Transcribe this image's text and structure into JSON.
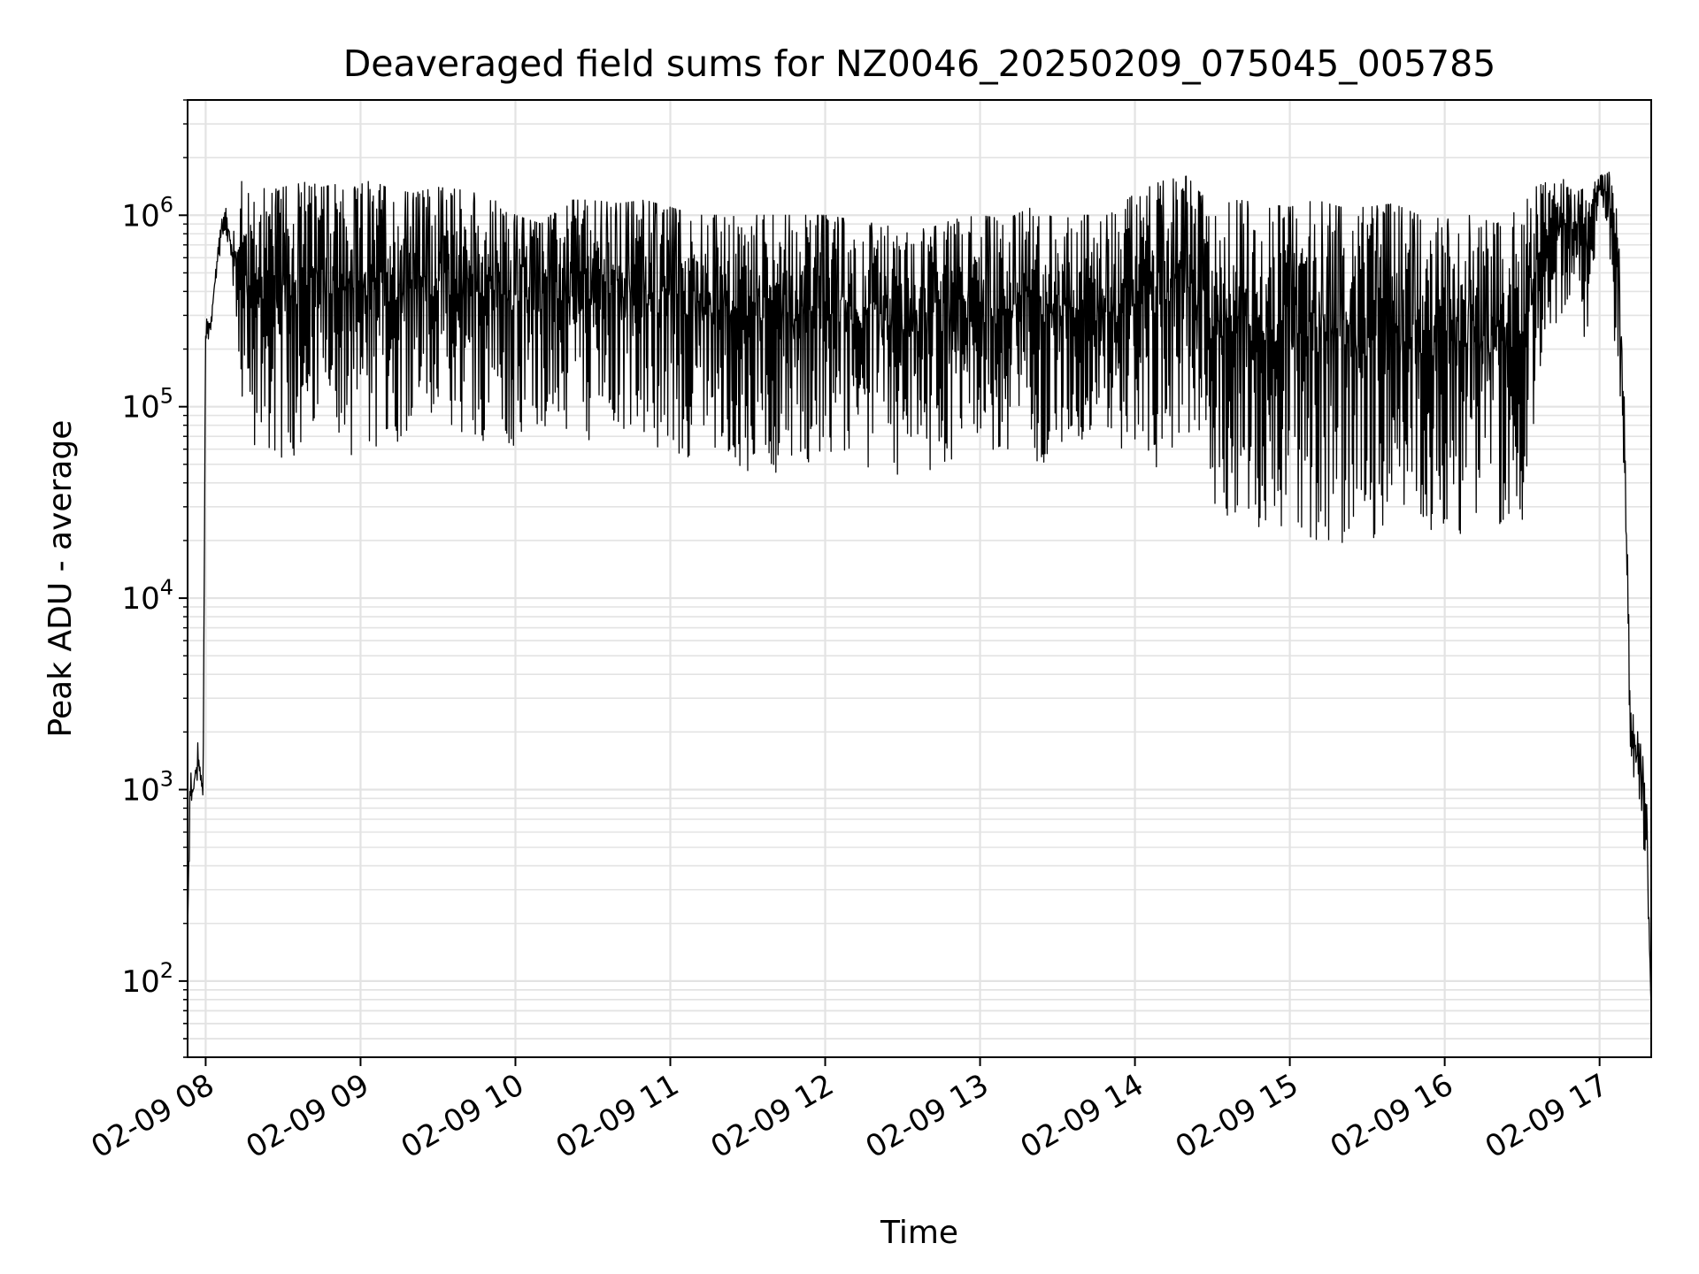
{
  "chart_data": {
    "type": "line",
    "title": "Deaveraged field sums for NZ0046_20250209_075045_005785",
    "xlabel": "Time",
    "ylabel": "Peak ADU - average",
    "x_scale": "time",
    "y_scale": "log",
    "xlim": [
      "2025-02-09 07:53",
      "2025-02-09 17:20"
    ],
    "ylim": [
      40,
      4000000
    ],
    "x_tick_labels": [
      "02-09 08",
      "02-09 09",
      "02-09 10",
      "02-09 11",
      "02-09 12",
      "02-09 13",
      "02-09 14",
      "02-09 15",
      "02-09 16",
      "02-09 17"
    ],
    "y_tick_labels": [
      {
        "value": 100,
        "base": "10",
        "exp": "2"
      },
      {
        "value": 1000,
        "base": "10",
        "exp": "3"
      },
      {
        "value": 10000,
        "base": "10",
        "exp": "4"
      },
      {
        "value": 100000,
        "base": "10",
        "exp": "5"
      },
      {
        "value": 1000000,
        "base": "10",
        "exp": "6"
      }
    ],
    "grid": true,
    "line_color": "#000000",
    "grid_color": "#e3e3e3",
    "series": [
      {
        "x": [
          "2025-02-09 07:53",
          "2025-02-09 07:54",
          "2025-02-09 07:55",
          "2025-02-09 07:57",
          "2025-02-09 07:59",
          "2025-02-09 08:00",
          "2025-02-09 08:02",
          "2025-02-09 08:05",
          "2025-02-09 08:08",
          "2025-02-09 08:10",
          "2025-02-09 08:13",
          "2025-02-09 08:15",
          "2025-02-09 08:18",
          "2025-02-09 08:21",
          "2025-02-09 08:25",
          "2025-02-09 08:30",
          "2025-02-09 08:35",
          "2025-02-09 08:40",
          "2025-02-09 08:45",
          "2025-02-09 08:50",
          "2025-02-09 08:55",
          "2025-02-09 09:00",
          "2025-02-09 09:05",
          "2025-02-09 09:10",
          "2025-02-09 09:15",
          "2025-02-09 09:20",
          "2025-02-09 09:30",
          "2025-02-09 09:40",
          "2025-02-09 09:50",
          "2025-02-09 10:00",
          "2025-02-09 10:10",
          "2025-02-09 10:20",
          "2025-02-09 10:30",
          "2025-02-09 10:40",
          "2025-02-09 10:50",
          "2025-02-09 11:00",
          "2025-02-09 11:10",
          "2025-02-09 11:20",
          "2025-02-09 11:30",
          "2025-02-09 11:40",
          "2025-02-09 11:50",
          "2025-02-09 12:00",
          "2025-02-09 12:10",
          "2025-02-09 12:20",
          "2025-02-09 12:30",
          "2025-02-09 12:40",
          "2025-02-09 12:50",
          "2025-02-09 13:00",
          "2025-02-09 13:10",
          "2025-02-09 13:20",
          "2025-02-09 13:30",
          "2025-02-09 13:40",
          "2025-02-09 13:50",
          "2025-02-09 14:00",
          "2025-02-09 14:10",
          "2025-02-09 14:20",
          "2025-02-09 14:30",
          "2025-02-09 14:40",
          "2025-02-09 14:50",
          "2025-02-09 15:00",
          "2025-02-09 15:10",
          "2025-02-09 15:20",
          "2025-02-09 15:30",
          "2025-02-09 15:40",
          "2025-02-09 15:50",
          "2025-02-09 16:00",
          "2025-02-09 16:10",
          "2025-02-09 16:20",
          "2025-02-09 16:30",
          "2025-02-09 16:35",
          "2025-02-09 16:40",
          "2025-02-09 16:45",
          "2025-02-09 16:50",
          "2025-02-09 16:55",
          "2025-02-09 17:00",
          "2025-02-09 17:03",
          "2025-02-09 17:06",
          "2025-02-09 17:09",
          "2025-02-09 17:12",
          "2025-02-09 17:15",
          "2025-02-09 17:18",
          "2025-02-09 17:20"
        ],
        "high": [
          180,
          1400,
          1100,
          1800,
          1000,
          300000,
          280000,
          800000,
          1200000,
          700000,
          1700000,
          1300000,
          1300000,
          1400000,
          1350000,
          1400000,
          1450000,
          1500000,
          1400000,
          1450000,
          1300000,
          1500000,
          1500000,
          1400000,
          1350000,
          1300000,
          1400000,
          1350000,
          1250000,
          1000000,
          900000,
          1200000,
          1200000,
          1150000,
          1200000,
          1100000,
          1000000,
          1000000,
          1000000,
          1000000,
          1000000,
          1000000,
          950000,
          900000,
          850000,
          850000,
          950000,
          1000000,
          950000,
          1100000,
          950000,
          1000000,
          1000000,
          1300000,
          1500000,
          1600000,
          1100000,
          1200000,
          1150000,
          1100000,
          1200000,
          1100000,
          1100000,
          1150000,
          1000000,
          950000,
          1000000,
          900000,
          1100000,
          1400000,
          1500000,
          1600000,
          1300000,
          1400000,
          1600000,
          1700000,
          1600000,
          300000,
          3000,
          2000,
          1200,
          70
        ],
        "low": [
          180,
          600,
          800,
          1000,
          900,
          200000,
          250000,
          600000,
          700000,
          600000,
          100000,
          80000,
          60000,
          60000,
          55000,
          50000,
          55000,
          60000,
          70000,
          60000,
          55000,
          55000,
          50000,
          60000,
          65000,
          80000,
          70000,
          70000,
          65000,
          60000,
          80000,
          65000,
          65000,
          60000,
          65000,
          50000,
          55000,
          60000,
          45000,
          45000,
          50000,
          50000,
          45000,
          40000,
          42000,
          45000,
          50000,
          55000,
          50000,
          48000,
          55000,
          55000,
          52000,
          50000,
          45000,
          60000,
          28000,
          25000,
          22000,
          24000,
          20000,
          18000,
          20000,
          22000,
          22000,
          20000,
          22000,
          22000,
          25000,
          80000,
          200000,
          300000,
          400000,
          200000,
          1200000,
          900000,
          200000,
          50000,
          1500,
          800,
          400,
          70
        ]
      }
    ]
  }
}
